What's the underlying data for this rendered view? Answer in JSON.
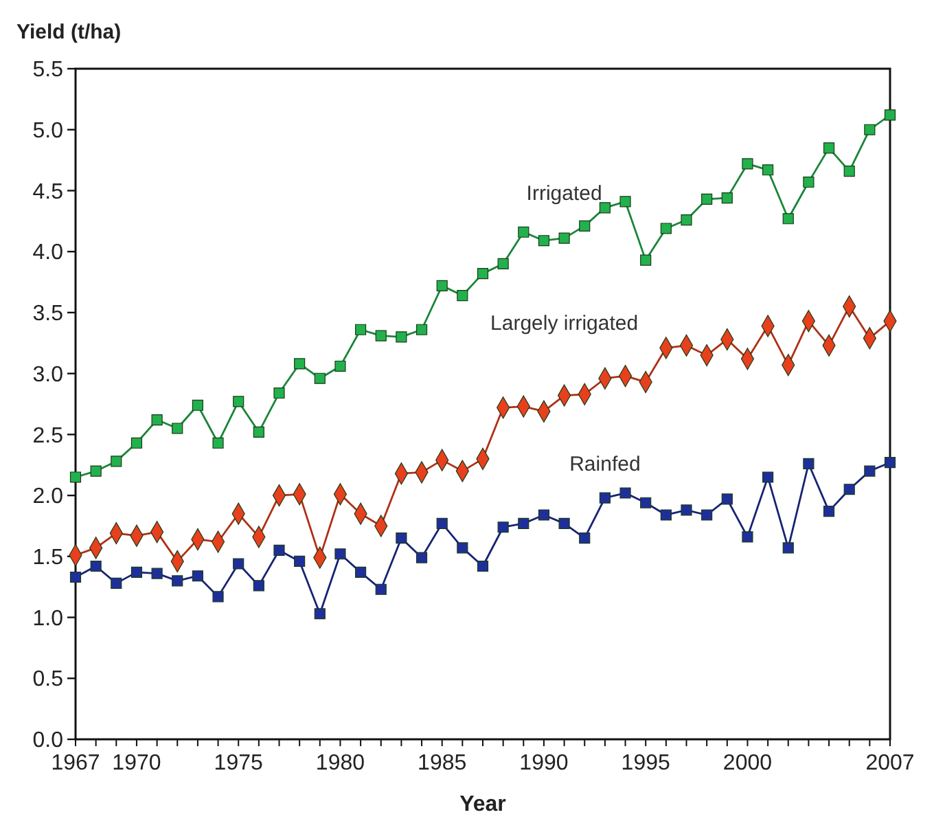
{
  "chart_data": {
    "type": "line",
    "xlabel": "Year",
    "ylabel": "Yield (t/ha)",
    "x": [
      1967,
      1968,
      1969,
      1970,
      1971,
      1972,
      1973,
      1974,
      1975,
      1976,
      1977,
      1978,
      1979,
      1980,
      1981,
      1982,
      1983,
      1984,
      1985,
      1986,
      1987,
      1988,
      1989,
      1990,
      1991,
      1992,
      1993,
      1994,
      1995,
      1996,
      1997,
      1998,
      1999,
      2000,
      2001,
      2002,
      2003,
      2004,
      2005,
      2006,
      2007
    ],
    "xlim": [
      1967,
      2007
    ],
    "xticks": [
      1967,
      {
        "value": 1968,
        "label": null
      },
      {
        "value": 1969,
        "label": null
      },
      1970,
      {
        "value": 1971,
        "label": null
      },
      {
        "value": 1972,
        "label": null
      },
      {
        "value": 1973,
        "label": null
      },
      {
        "value": 1974,
        "label": null
      },
      1975,
      {
        "value": 1976,
        "label": null
      },
      {
        "value": 1977,
        "label": null
      },
      {
        "value": 1978,
        "label": null
      },
      {
        "value": 1979,
        "label": null
      },
      1980,
      {
        "value": 1981,
        "label": null
      },
      {
        "value": 1982,
        "label": null
      },
      {
        "value": 1983,
        "label": null
      },
      {
        "value": 1984,
        "label": null
      },
      1985,
      {
        "value": 1986,
        "label": null
      },
      {
        "value": 1987,
        "label": null
      },
      {
        "value": 1988,
        "label": null
      },
      {
        "value": 1989,
        "label": null
      },
      1990,
      {
        "value": 1991,
        "label": null
      },
      {
        "value": 1992,
        "label": null
      },
      {
        "value": 1993,
        "label": null
      },
      {
        "value": 1994,
        "label": null
      },
      1995,
      {
        "value": 1996,
        "label": null
      },
      {
        "value": 1997,
        "label": null
      },
      {
        "value": 1998,
        "label": null
      },
      {
        "value": 1999,
        "label": null
      },
      2000,
      {
        "value": 2001,
        "label": null
      },
      {
        "value": 2002,
        "label": null
      },
      {
        "value": 2003,
        "label": null
      },
      {
        "value": 2004,
        "label": null
      },
      {
        "value": 2005,
        "label": null
      },
      {
        "value": 2006,
        "label": null
      },
      2007
    ],
    "ylim": [
      0,
      5.5
    ],
    "yticks": [
      {
        "value": 0,
        "label": "0.0"
      },
      {
        "value": 0.5,
        "label": "0.5"
      },
      {
        "value": 1,
        "label": "1.0"
      },
      {
        "value": 1.5,
        "label": "1.5"
      },
      {
        "value": 2,
        "label": "2.0"
      },
      {
        "value": 2.5,
        "label": "2.5"
      },
      {
        "value": 3,
        "label": "3.0"
      },
      {
        "value": 3.5,
        "label": "3.5"
      },
      {
        "value": 4,
        "label": "4.0"
      },
      {
        "value": 4.5,
        "label": "4.5"
      },
      {
        "value": 5,
        "label": "5.0"
      },
      {
        "value": 5.5,
        "label": "5.5"
      }
    ],
    "grid": false,
    "line_style": "solid",
    "series": [
      {
        "name": "Irrigated",
        "color": "#22b14c",
        "marker": "square",
        "values": [
          2.15,
          2.2,
          2.28,
          2.43,
          2.62,
          2.55,
          2.74,
          2.43,
          2.77,
          2.52,
          2.84,
          3.08,
          2.96,
          3.06,
          3.36,
          3.31,
          3.3,
          3.36,
          3.72,
          3.64,
          3.82,
          3.9,
          4.16,
          4.09,
          4.11,
          4.21,
          4.36,
          4.41,
          3.93,
          4.19,
          4.26,
          4.43,
          4.44,
          4.72,
          4.67,
          4.27,
          4.57,
          4.85,
          4.66,
          5.0,
          5.12
        ]
      },
      {
        "name": "Largely irrigated",
        "color": "#e8401c",
        "marker": "diamond",
        "values": [
          1.51,
          1.57,
          1.69,
          1.67,
          1.7,
          1.46,
          1.64,
          1.62,
          1.85,
          1.66,
          2.0,
          2.01,
          1.49,
          2.01,
          1.85,
          1.75,
          2.18,
          2.19,
          2.29,
          2.2,
          2.3,
          2.72,
          2.73,
          2.69,
          2.82,
          2.83,
          2.96,
          2.98,
          2.93,
          3.21,
          3.23,
          3.15,
          3.28,
          3.12,
          3.39,
          3.07,
          3.43,
          3.23,
          3.55,
          3.29,
          3.43
        ]
      },
      {
        "name": "Rainfed",
        "color": "#1f2f9a",
        "marker": "square",
        "values": [
          1.33,
          1.42,
          1.28,
          1.37,
          1.36,
          1.3,
          1.34,
          1.17,
          1.44,
          1.26,
          1.55,
          1.46,
          1.03,
          1.52,
          1.37,
          1.23,
          1.65,
          1.49,
          1.77,
          1.57,
          1.42,
          1.74,
          1.77,
          1.84,
          1.77,
          1.65,
          1.98,
          2.02,
          1.94,
          1.84,
          1.88,
          1.84,
          1.97,
          1.66,
          2.15,
          1.57,
          2.26,
          1.87,
          2.05,
          2.2,
          2.27
        ]
      }
    ]
  }
}
